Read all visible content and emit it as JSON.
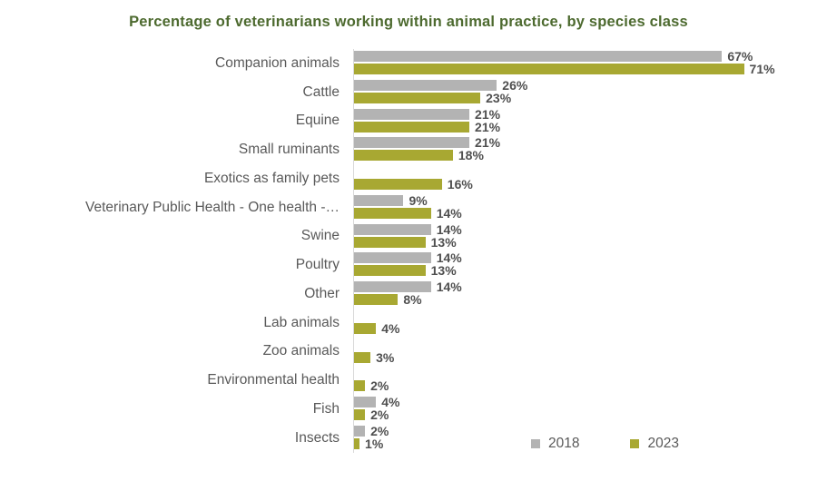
{
  "title": "Percentage of veterinarians working within animal practice, by species class",
  "colors": {
    "title_green": "#4d6a2f",
    "series_2018": "#b3b3b3",
    "series_2023": "#a8a832",
    "category_label": "#595959",
    "value_label": "#4f4f4f",
    "axis_line": "#d9d9d9",
    "background": "#ffffff"
  },
  "legend": {
    "items": [
      {
        "label": "2018",
        "color": "#b3b3b3"
      },
      {
        "label": "2023",
        "color": "#a8a832"
      }
    ],
    "position": "bottom-right"
  },
  "chart_data": {
    "type": "bar",
    "orientation": "horizontal",
    "title": "Percentage of veterinarians working within animal practice, by species class",
    "xlabel": "",
    "ylabel": "",
    "xlim": [
      0,
      78
    ],
    "grid": false,
    "value_suffix": "%",
    "legend_position": "bottom-right",
    "categories": [
      "Companion animals",
      "Cattle",
      "Equine",
      "Small ruminants",
      "Exotics as family pets",
      "Veterinary Public Health - One health -…",
      "Swine",
      "Poultry",
      "Other",
      "Lab animals",
      "Zoo animals",
      "Environmental health",
      "Fish",
      "Insects"
    ],
    "series": [
      {
        "name": "2018",
        "color": "#b3b3b3",
        "values": [
          67,
          26,
          21,
          21,
          null,
          9,
          14,
          14,
          14,
          null,
          null,
          null,
          4,
          2
        ]
      },
      {
        "name": "2023",
        "color": "#a8a832",
        "values": [
          71,
          23,
          21,
          18,
          16,
          14,
          13,
          13,
          8,
          4,
          3,
          2,
          2,
          1
        ]
      }
    ]
  }
}
